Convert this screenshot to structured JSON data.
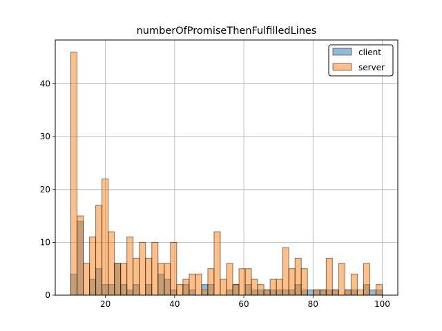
{
  "chart_data": {
    "type": "histogram",
    "title": "numberOfPromiseThenFulfilledLines",
    "xlabel": "",
    "ylabel": "",
    "xlim": [
      5.5,
      104.5
    ],
    "ylim": [
      0,
      48.3
    ],
    "grid": true,
    "legend_position": "top-right",
    "bins": {
      "start": 10,
      "width": 1.8,
      "count": 50
    },
    "xticks": [
      20,
      40,
      60,
      80,
      100
    ],
    "yticks": [
      0,
      10,
      20,
      30,
      40
    ],
    "series": [
      {
        "name": "client",
        "color": "#1f77b4",
        "counts": [
          4,
          14,
          0,
          3,
          5,
          2,
          2,
          6,
          2,
          1,
          2,
          0,
          2,
          0,
          4,
          3,
          1,
          0,
          2,
          1,
          0,
          2,
          2,
          0,
          0,
          1,
          2,
          0,
          2,
          1,
          1,
          1,
          1,
          1,
          1,
          1,
          2,
          1,
          1,
          1,
          1,
          1,
          1,
          0,
          1,
          1,
          0,
          2,
          1,
          1
        ]
      },
      {
        "name": "server",
        "color": "#ff7f0e",
        "counts": [
          46,
          15,
          6,
          11,
          17,
          22,
          12,
          6,
          6,
          11,
          7,
          10,
          7,
          10,
          6,
          6,
          10,
          2,
          3,
          4,
          4,
          1,
          5,
          12,
          3,
          6,
          2,
          5,
          5,
          3,
          2,
          1,
          3,
          3,
          9,
          5,
          7,
          5,
          0,
          1,
          1,
          7,
          1,
          6,
          1,
          4,
          1,
          6,
          0,
          2
        ]
      }
    ]
  }
}
